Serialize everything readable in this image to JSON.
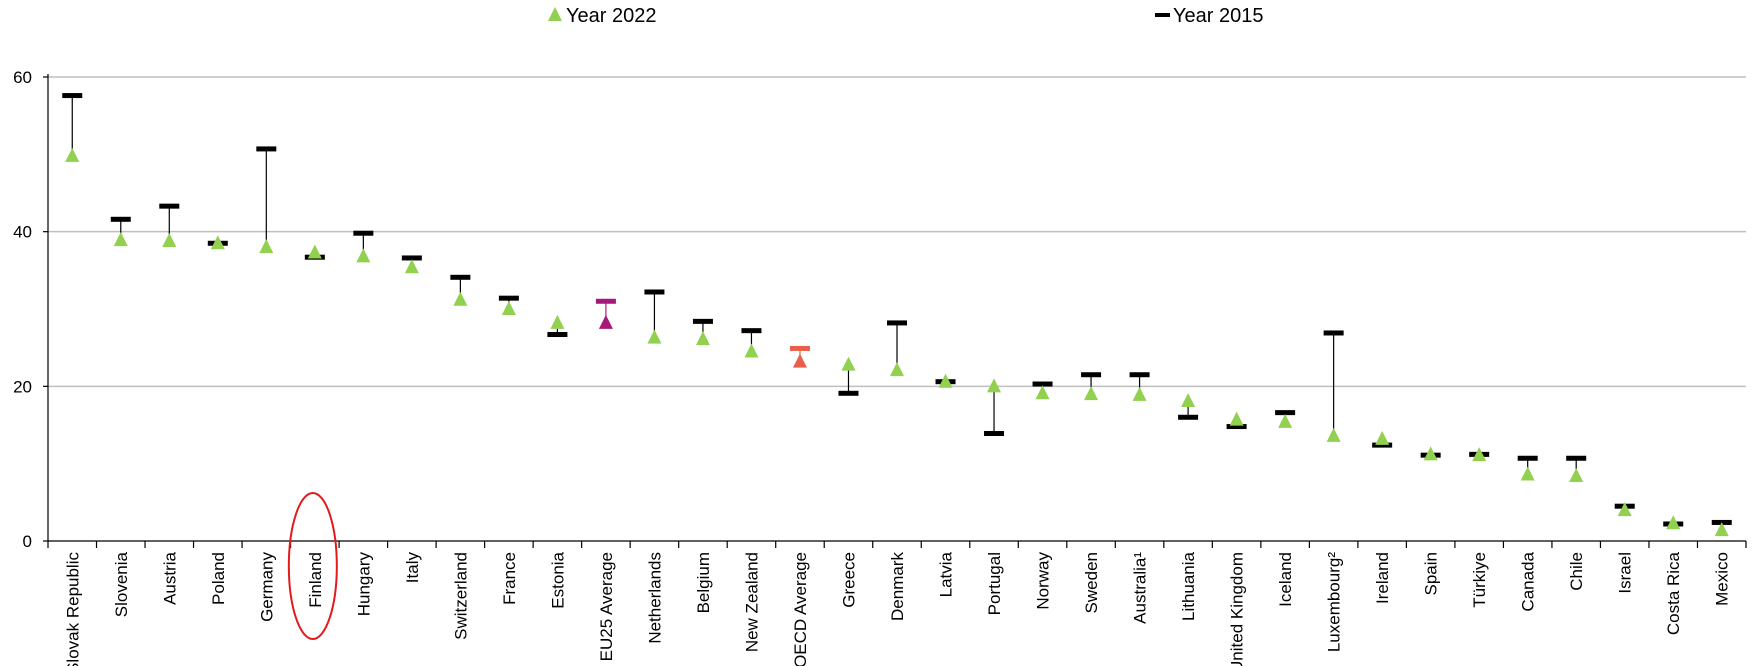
{
  "chart_data": {
    "type": "scatter",
    "title": "",
    "xlabel": "",
    "ylabel": "",
    "ylim": [
      0,
      60
    ],
    "yticks": [
      "0",
      "20",
      "40",
      "60"
    ],
    "grid": true,
    "legend_position": "top",
    "legend": {
      "year2022": "Year 2022",
      "year2015": "Year 2015"
    },
    "colors": {
      "triangle": "#92d050",
      "bar": "#000000",
      "grid": "#bfbfbf",
      "eu_average": "#a6197a",
      "oecd_average": "#e8604c",
      "highlight_circle": "#e31a1c"
    },
    "highlight": "Finland",
    "categories": [
      "Slovak Republic",
      "Slovenia",
      "Austria",
      "Poland",
      "Germany",
      "Finland",
      "Hungary",
      "Italy",
      "Switzerland",
      "France",
      "Estonia",
      "EU25 Average",
      "Netherlands",
      "Belgium",
      "New Zealand",
      "OECD Average",
      "Greece",
      "Denmark",
      "Latvia",
      "Portugal",
      "Norway",
      "Sweden",
      "Australia¹",
      "Lithuania",
      "United Kingdom",
      "Iceland",
      "Luxembourg²",
      "Ireland",
      "Spain",
      "Türkiye",
      "Canada",
      "Chile",
      "Israel",
      "Costa Rica",
      "Mexico"
    ],
    "series": [
      {
        "name": "Year 2022",
        "marker": "triangle",
        "values": [
          49.8,
          38.9,
          38.8,
          38.5,
          38.0,
          37.3,
          36.8,
          35.4,
          31.2,
          30.0,
          28.2,
          28.2,
          26.3,
          26.1,
          24.5,
          23.2,
          22.8,
          22.1,
          20.6,
          20.0,
          19.1,
          19.0,
          18.9,
          18.1,
          15.7,
          15.4,
          13.6,
          13.2,
          11.2,
          11.1,
          8.6,
          8.4,
          4.0,
          2.3,
          1.4
        ]
      },
      {
        "name": "Year 2015",
        "marker": "dash",
        "values": [
          57.6,
          41.6,
          43.3,
          38.5,
          50.7,
          36.7,
          39.8,
          36.6,
          34.1,
          31.4,
          26.7,
          31.0,
          32.2,
          28.4,
          27.2,
          24.9,
          19.1,
          28.2,
          20.6,
          13.9,
          20.3,
          21.5,
          21.5,
          16.0,
          14.8,
          16.6,
          26.9,
          12.4,
          11.1,
          11.2,
          10.7,
          10.7,
          4.5,
          2.2,
          2.4
        ]
      }
    ]
  }
}
